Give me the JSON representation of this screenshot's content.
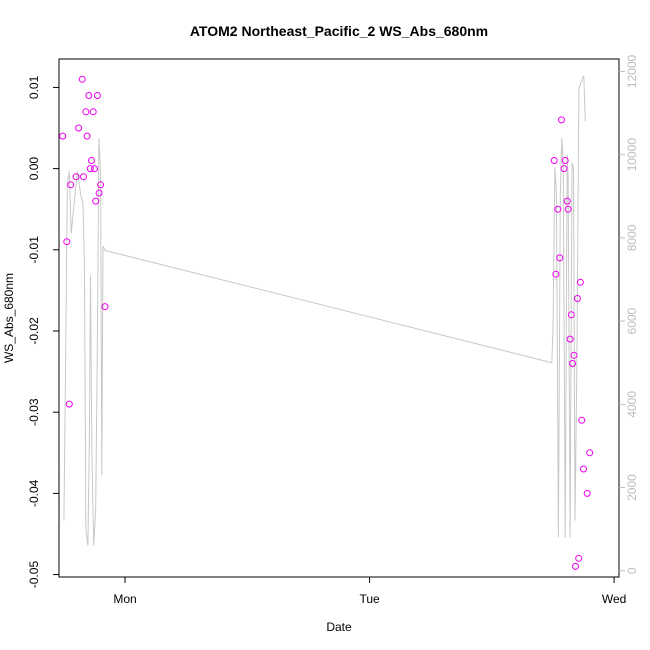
{
  "chart_data": {
    "type": "scatter",
    "title": "ATOM2 Northeast_Pacific_2 WS_Abs_680nm",
    "xlabel": "Date",
    "ylabel": "WS_Abs_680nm",
    "xlim": [
      -0.27,
      2.02
    ],
    "ylim": [
      -0.0503,
      0.0135
    ],
    "y2lim": [
      -150,
      12300
    ],
    "x_ticks": [
      {
        "value": 0,
        "label": "Mon"
      },
      {
        "value": 1,
        "label": "Tue"
      },
      {
        "value": 2,
        "label": "Wed"
      }
    ],
    "y_ticks": [
      {
        "value": 0.01,
        "label": "0.01"
      },
      {
        "value": 0.0,
        "label": "0.00"
      },
      {
        "value": -0.01,
        "label": "-0.01"
      },
      {
        "value": -0.02,
        "label": "-0.02"
      },
      {
        "value": -0.03,
        "label": "-0.03"
      },
      {
        "value": -0.04,
        "label": "-0.04"
      },
      {
        "value": -0.05,
        "label": "-0.05"
      }
    ],
    "y2_ticks": [
      {
        "value": 0,
        "label": "0"
      },
      {
        "value": 2000,
        "label": "2000"
      },
      {
        "value": 4000,
        "label": "4000"
      },
      {
        "value": 6000,
        "label": "6000"
      },
      {
        "value": 8000,
        "label": "8000"
      },
      {
        "value": 10000,
        "label": "10000"
      },
      {
        "value": 12000,
        "label": "12000"
      }
    ],
    "grid": false,
    "colors": {
      "points": "#ee00ee",
      "line": "#c8c8c8",
      "right_axis": "#bdbdbd"
    },
    "series": [
      {
        "type": "scatter",
        "axis": "left",
        "points": [
          [
            -0.255,
            0.004
          ],
          [
            -0.238,
            -0.009
          ],
          [
            -0.228,
            -0.029
          ],
          [
            -0.222,
            -0.002
          ],
          [
            -0.2,
            -0.001
          ],
          [
            -0.19,
            0.005
          ],
          [
            -0.175,
            0.011
          ],
          [
            -0.17,
            -0.001
          ],
          [
            -0.16,
            0.007
          ],
          [
            -0.155,
            0.004
          ],
          [
            -0.148,
            0.009
          ],
          [
            -0.142,
            0.0
          ],
          [
            -0.137,
            0.001
          ],
          [
            -0.13,
            0.007
          ],
          [
            -0.125,
            0.0
          ],
          [
            -0.12,
            -0.004
          ],
          [
            -0.113,
            0.009
          ],
          [
            -0.106,
            -0.003
          ],
          [
            -0.1,
            -0.002
          ],
          [
            -0.082,
            -0.017
          ],
          [
            1.755,
            0.001
          ],
          [
            1.762,
            -0.013
          ],
          [
            1.77,
            -0.005
          ],
          [
            1.778,
            -0.011
          ],
          [
            1.785,
            0.006
          ],
          [
            1.795,
            0.0
          ],
          [
            1.8,
            0.001
          ],
          [
            1.808,
            -0.004
          ],
          [
            1.812,
            -0.005
          ],
          [
            1.82,
            -0.021
          ],
          [
            1.825,
            -0.018
          ],
          [
            1.83,
            -0.024
          ],
          [
            1.836,
            -0.023
          ],
          [
            1.842,
            -0.049
          ],
          [
            1.85,
            -0.016
          ],
          [
            1.855,
            -0.048
          ],
          [
            1.862,
            -0.014
          ],
          [
            1.868,
            -0.031
          ],
          [
            1.875,
            -0.037
          ],
          [
            1.89,
            -0.04
          ],
          [
            1.9,
            -0.035
          ]
        ]
      },
      {
        "type": "line",
        "axis": "right",
        "points": [
          [
            -0.25,
            1200
          ],
          [
            -0.243,
            5000
          ],
          [
            -0.236,
            9300
          ],
          [
            -0.228,
            9600
          ],
          [
            -0.22,
            8100
          ],
          [
            -0.205,
            9000
          ],
          [
            -0.195,
            9600
          ],
          [
            -0.18,
            9000
          ],
          [
            -0.172,
            8800
          ],
          [
            -0.166,
            7400
          ],
          [
            -0.16,
            1000
          ],
          [
            -0.152,
            600
          ],
          [
            -0.146,
            3000
          ],
          [
            -0.141,
            7100
          ],
          [
            -0.136,
            3000
          ],
          [
            -0.128,
            600
          ],
          [
            -0.12,
            1500
          ],
          [
            -0.113,
            5500
          ],
          [
            -0.107,
            10400
          ],
          [
            -0.1,
            9500
          ],
          [
            -0.095,
            2300
          ],
          [
            -0.09,
            7800
          ],
          [
            -0.082,
            7700
          ],
          [
            1.745,
            5000
          ],
          [
            1.75,
            5800
          ],
          [
            1.758,
            9700
          ],
          [
            1.764,
            9100
          ],
          [
            1.772,
            800
          ],
          [
            1.78,
            9000
          ],
          [
            1.786,
            10400
          ],
          [
            1.792,
            9800
          ],
          [
            1.8,
            800
          ],
          [
            1.808,
            10000
          ],
          [
            1.812,
            9500
          ],
          [
            1.82,
            800
          ],
          [
            1.828,
            9800
          ],
          [
            1.834,
            9700
          ],
          [
            1.84,
            1200
          ],
          [
            1.848,
            5000
          ],
          [
            1.856,
            11600
          ],
          [
            1.876,
            11900
          ],
          [
            1.882,
            10800
          ]
        ]
      }
    ]
  }
}
